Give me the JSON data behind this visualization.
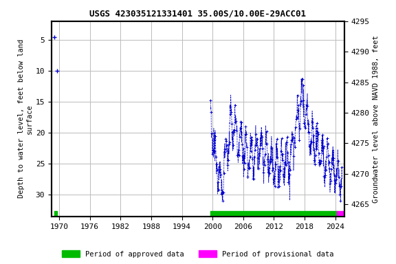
{
  "title": "USGS 423035121331401 35.00S/10.00E-29ACC01",
  "ylabel_left": "Depth to water level, feet below land\nsurface",
  "ylabel_right": "Groundwater level above NAVD 1988, feet",
  "xlim": [
    1968.5,
    2025.8
  ],
  "ylim_left": [
    2,
    33.5
  ],
  "ylim_right": [
    4263,
    4295
  ],
  "xticks": [
    1970,
    1976,
    1982,
    1988,
    1994,
    2000,
    2006,
    2012,
    2018,
    2024
  ],
  "yticks_left": [
    5,
    10,
    15,
    20,
    25,
    30
  ],
  "yticks_right": [
    4265,
    4270,
    4275,
    4280,
    4285,
    4290,
    4295
  ],
  "grid_color": "#bbbbbb",
  "bg_color": "#ffffff",
  "data_color": "#0000cc",
  "approved_bar_color": "#00bb00",
  "provisional_bar_color": "#ff00ff",
  "approved_bar_start": 1999.6,
  "approved_bar_end": 2024.3,
  "provisional_bar_start": 2024.3,
  "provisional_bar_end": 2025.5,
  "early_approved_bar_start": 1969.0,
  "early_approved_bar_end": 1969.55,
  "legend_approved": "Period of approved data",
  "legend_provisional": "Period of provisional data",
  "font_family": "monospace",
  "title_fontsize": 9,
  "label_fontsize": 7.5,
  "tick_fontsize": 8,
  "sparse_points": [
    [
      1969.05,
      4.6
    ],
    [
      1969.55,
      10.0
    ]
  ],
  "seed": 12345
}
